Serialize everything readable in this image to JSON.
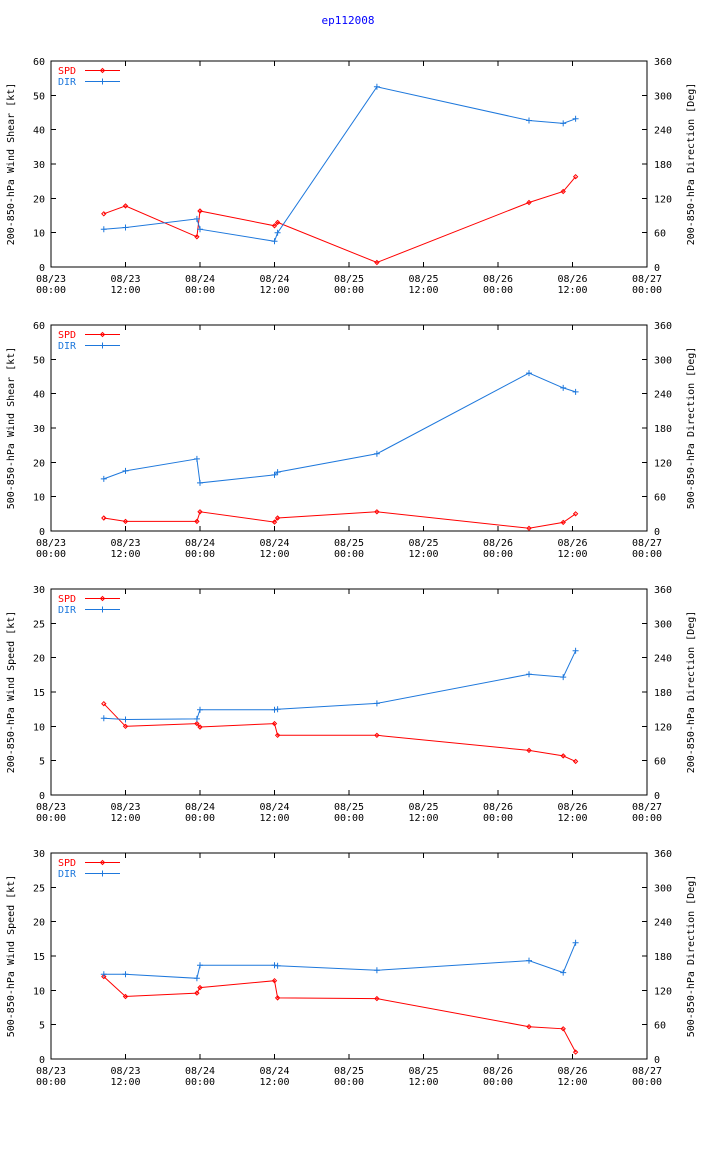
{
  "figure_title": "ep112008",
  "colors": {
    "spd": "#ff0000",
    "dir": "#1e78dc",
    "axis": "#000000",
    "title": "#0000ff"
  },
  "chart_data": [
    {
      "type": "line",
      "ylabel": "200-850-hPa Wind Shear [kt]",
      "y2label": "200-850-hPa Direction [Deg]",
      "ylim": [
        0,
        60
      ],
      "yticks": [
        "0",
        "10",
        "20",
        "30",
        "40",
        "50",
        "60"
      ],
      "y2lim": [
        0,
        360
      ],
      "y2ticks": [
        "0",
        "60",
        "120",
        "180",
        "240",
        "300",
        "360"
      ],
      "xlim": [
        0,
        96
      ],
      "xtick_dates": [
        "08/23",
        "08/23",
        "08/24",
        "08/24",
        "08/25",
        "08/25",
        "08/26",
        "08/26",
        "08/27"
      ],
      "xtick_times": [
        "00:00",
        "12:00",
        "00:00",
        "12:00",
        "00:00",
        "12:00",
        "00:00",
        "12:00",
        "00:00"
      ],
      "legend": [
        "SPD",
        "DIR"
      ],
      "series": [
        {
          "name": "SPD",
          "x": [
            8.5,
            12,
            23.5,
            24,
            36,
            36.5,
            52.5,
            77,
            82.5,
            84.5
          ],
          "values": [
            15.5,
            17.8,
            8.8,
            16.3,
            12,
            13,
            1.3,
            18.8,
            22,
            26.3
          ]
        },
        {
          "name": "DIR",
          "x": [
            8.5,
            12,
            23.5,
            24,
            36,
            36.5,
            52.5,
            77,
            82.5,
            84.5
          ],
          "values": [
            66,
            69,
            84,
            66,
            45,
            60,
            315,
            256,
            251,
            259
          ]
        }
      ]
    },
    {
      "type": "line",
      "ylabel": "500-850-hPa Wind Shear [kt]",
      "y2label": "500-850-hPa Direction [Deg]",
      "ylim": [
        0,
        60
      ],
      "yticks": [
        "0",
        "10",
        "20",
        "30",
        "40",
        "50",
        "60"
      ],
      "y2lim": [
        0,
        360
      ],
      "y2ticks": [
        "0",
        "60",
        "120",
        "180",
        "240",
        "300",
        "360"
      ],
      "xlim": [
        0,
        96
      ],
      "xtick_dates": [
        "08/23",
        "08/23",
        "08/24",
        "08/24",
        "08/25",
        "08/25",
        "08/26",
        "08/26",
        "08/27"
      ],
      "xtick_times": [
        "00:00",
        "12:00",
        "00:00",
        "12:00",
        "00:00",
        "12:00",
        "00:00",
        "12:00",
        "00:00"
      ],
      "legend": [
        "SPD",
        "DIR"
      ],
      "series": [
        {
          "name": "SPD",
          "x": [
            8.5,
            12,
            23.5,
            24,
            36,
            36.5,
            52.5,
            77,
            82.5,
            84.5
          ],
          "values": [
            3.8,
            2.8,
            2.8,
            5.6,
            2.6,
            3.8,
            5.6,
            0.8,
            2.5,
            5
          ]
        },
        {
          "name": "DIR",
          "x": [
            8.5,
            12,
            23.5,
            24,
            36,
            36.5,
            52.5,
            77,
            82.5,
            84.5
          ],
          "values": [
            91,
            105,
            126,
            84,
            98,
            103,
            135,
            276,
            250,
            243
          ]
        }
      ]
    },
    {
      "type": "line",
      "ylabel": "200-850-hPa Wind Speed [kt]",
      "y2label": "200-850-hPa Direction [Deg]",
      "ylim": [
        0,
        30
      ],
      "yticks": [
        "0",
        "5",
        "10",
        "15",
        "20",
        "25",
        "30"
      ],
      "y2lim": [
        0,
        360
      ],
      "y2ticks": [
        "0",
        "60",
        "120",
        "180",
        "240",
        "300",
        "360"
      ],
      "xlim": [
        0,
        96
      ],
      "xtick_dates": [
        "08/23",
        "08/23",
        "08/24",
        "08/24",
        "08/25",
        "08/25",
        "08/26",
        "08/26",
        "08/27"
      ],
      "xtick_times": [
        "00:00",
        "12:00",
        "00:00",
        "12:00",
        "00:00",
        "12:00",
        "00:00",
        "12:00",
        "00:00"
      ],
      "legend": [
        "SPD",
        "DIR"
      ],
      "series": [
        {
          "name": "SPD",
          "x": [
            8.5,
            12,
            23.5,
            24,
            36,
            36.5,
            52.5,
            77,
            82.5,
            84.5
          ],
          "values": [
            13.3,
            10,
            10.4,
            9.9,
            10.4,
            8.7,
            8.7,
            6.5,
            5.7,
            4.9
          ]
        },
        {
          "name": "DIR",
          "x": [
            8.5,
            12,
            23.5,
            24,
            36,
            36.5,
            52.5,
            77,
            82.5,
            84.5
          ],
          "values": [
            134,
            132,
            133,
            149,
            149,
            150,
            160,
            211,
            206,
            252
          ]
        }
      ]
    },
    {
      "type": "line",
      "ylabel": "500-850-hPa Wind Speed [kt]",
      "y2label": "500-850-hPa Direction [Deg]",
      "ylim": [
        0,
        30
      ],
      "yticks": [
        "0",
        "5",
        "10",
        "15",
        "20",
        "25",
        "30"
      ],
      "y2lim": [
        0,
        360
      ],
      "y2ticks": [
        "0",
        "60",
        "120",
        "180",
        "240",
        "300",
        "360"
      ],
      "xlim": [
        0,
        96
      ],
      "xtick_dates": [
        "08/23",
        "08/23",
        "08/24",
        "08/24",
        "08/25",
        "08/25",
        "08/26",
        "08/26",
        "08/27"
      ],
      "xtick_times": [
        "00:00",
        "12:00",
        "00:00",
        "12:00",
        "00:00",
        "12:00",
        "00:00",
        "12:00",
        "00:00"
      ],
      "legend": [
        "SPD",
        "DIR"
      ],
      "series": [
        {
          "name": "SPD",
          "x": [
            8.5,
            12,
            23.5,
            24,
            36,
            36.5,
            52.5,
            77,
            82.5,
            84.5
          ],
          "values": [
            12,
            9.1,
            9.6,
            10.4,
            11.4,
            8.9,
            8.8,
            4.7,
            4.4,
            1
          ]
        },
        {
          "name": "DIR",
          "x": [
            8.5,
            12,
            23.5,
            24,
            36,
            36.5,
            52.5,
            77,
            82.5,
            84.5
          ],
          "values": [
            148,
            148,
            141,
            164,
            164,
            163,
            155,
            172,
            151,
            203
          ]
        }
      ]
    }
  ]
}
